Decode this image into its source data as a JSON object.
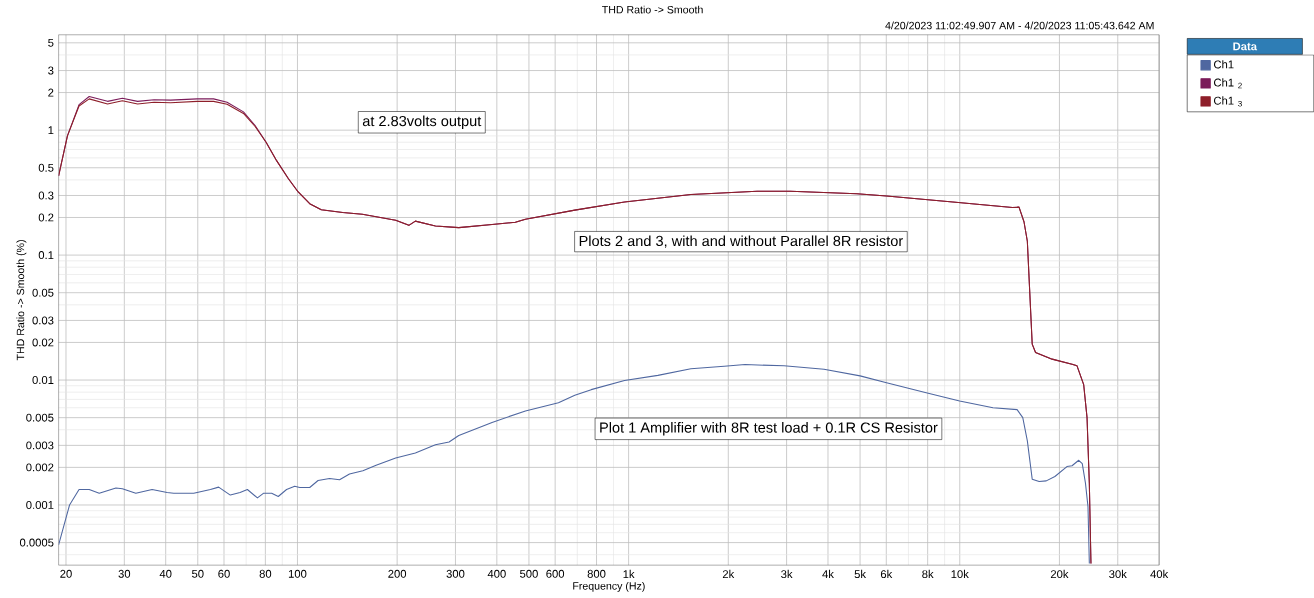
{
  "chart_data": {
    "type": "line",
    "title": "THD Ratio -> Smooth",
    "subtitle": "4/20/2023 11:02:49.907 AM - 4/20/2023 11:05:43.642 AM",
    "xlabel": "Frequency (Hz)",
    "ylabel": "THD Ratio -> Smooth (%)",
    "legend_title": "Data",
    "annotations": [
      "at 2.83volts output",
      "Plots 2 and 3, with and without Parallel 8R resistor",
      "Plot 1 Amplifier with 8R test load + 0.1R CS Resistor"
    ],
    "log": "xy",
    "grid": true,
    "legend": "top right",
    "marker": "none",
    "line_style": "solid",
    "xlim": [
      19,
      40000
    ],
    "ylim": [
      0.00033,
      5.8
    ],
    "xticks": [
      20,
      30,
      40,
      50,
      60,
      80,
      100,
      200,
      300,
      400,
      500,
      600,
      800,
      {
        "value": 1000,
        "label": "1k"
      },
      {
        "value": 2000,
        "label": "2k"
      },
      {
        "value": 3000,
        "label": "3k"
      },
      {
        "value": 4000,
        "label": "4k"
      },
      {
        "value": 5000,
        "label": "5k"
      },
      {
        "value": 6000,
        "label": "6k"
      },
      {
        "value": 8000,
        "label": "8k"
      },
      {
        "value": 10000,
        "label": "10k"
      },
      {
        "value": 20000,
        "label": "20k"
      },
      {
        "value": 30000,
        "label": "30k"
      },
      {
        "value": 40000,
        "label": "40k"
      }
    ],
    "yticks": [
      0.0005,
      0.001,
      0.002,
      0.003,
      0.005,
      0.01,
      0.02,
      0.03,
      0.05,
      0.1,
      0.2,
      0.3,
      0.5,
      1,
      2,
      3,
      5
    ],
    "series": [
      {
        "name": "Ch1",
        "color": "#4f67a0",
        "x": [
          19,
          20.5,
          21.9,
          23.5,
          25.2,
          28.3,
          29.6,
          32.5,
          36.4,
          40.4,
          42.3,
          48.6,
          54.6,
          57.8,
          62.7,
          67.1,
          70.6,
          75.7,
          78.9,
          83.6,
          87.5,
          92.7,
          98.1,
          101.6,
          108.9,
          115.4,
          125,
          134,
          143.6,
          157.6,
          172.8,
          198,
          227,
          261,
          287,
          307,
          387,
          488,
          614,
          688,
          771,
          972,
          1226,
          1542,
          1944,
          2247,
          2946,
          3891,
          5000,
          6010,
          7920,
          9990,
          12600,
          14900,
          15500,
          16000,
          16550,
          17370,
          18250,
          19380,
          21070,
          21830,
          22870,
          23440,
          23970,
          24390,
          24620
        ],
        "values": [
          0.00048,
          0.001,
          0.00133,
          0.00133,
          0.00124,
          0.00137,
          0.00135,
          0.00124,
          0.00133,
          0.00126,
          0.00124,
          0.00124,
          0.00133,
          0.00139,
          0.0012,
          0.00126,
          0.00133,
          0.00114,
          0.00124,
          0.00124,
          0.00117,
          0.00133,
          0.00141,
          0.00138,
          0.00138,
          0.00157,
          0.00163,
          0.00159,
          0.00177,
          0.00188,
          0.00208,
          0.00238,
          0.00261,
          0.00304,
          0.00319,
          0.0036,
          0.00458,
          0.00566,
          0.00659,
          0.00757,
          0.00838,
          0.0099,
          0.0109,
          0.0123,
          0.0129,
          0.0133,
          0.013,
          0.0122,
          0.0108,
          0.0095,
          0.0079,
          0.0068,
          0.006,
          0.0058,
          0.005,
          0.00326,
          0.00161,
          0.00154,
          0.00156,
          0.00169,
          0.00203,
          0.00206,
          0.00228,
          0.00214,
          0.00149,
          0.00097,
          0.00034
        ]
      },
      {
        "name": "Ch1 $_{2}$",
        "color": "#7b1b5a",
        "x": [
          19,
          20.2,
          21.9,
          23.5,
          26.7,
          29.6,
          32.9,
          36.9,
          41.4,
          49.8,
          55.8,
          61.3,
          68.7,
          74.5,
          80.4,
          86.5,
          93.8,
          100.5,
          108.9,
          118,
          137,
          157,
          198,
          217,
          227,
          261,
          307,
          387,
          455,
          488,
          688,
          972,
          1542,
          2444,
          3080,
          4890,
          6010,
          9530,
          14430,
          15100,
          15630,
          16000,
          16550,
          16940,
          19010,
          21830,
          22600,
          23670,
          24230,
          24620,
          24900
        ],
        "values": [
          0.43,
          0.9,
          1.6,
          1.86,
          1.7,
          1.8,
          1.7,
          1.75,
          1.74,
          1.78,
          1.78,
          1.67,
          1.4,
          1.09,
          0.8,
          0.57,
          0.41,
          0.32,
          0.258,
          0.231,
          0.219,
          0.212,
          0.19,
          0.173,
          0.187,
          0.171,
          0.166,
          0.176,
          0.183,
          0.194,
          0.229,
          0.266,
          0.306,
          0.324,
          0.324,
          0.31,
          0.297,
          0.266,
          0.24,
          0.242,
          0.185,
          0.129,
          0.0194,
          0.0166,
          0.0147,
          0.0134,
          0.013,
          0.0092,
          0.005,
          0.00149,
          0.00034
        ]
      },
      {
        "name": "Ch1 $_{3}$",
        "color": "#8e1f2a",
        "x": [
          19,
          20.2,
          21.9,
          23.5,
          26.7,
          29.6,
          32.9,
          36.9,
          41.4,
          49.8,
          55.8,
          61.3,
          68.7,
          74.5,
          80.4,
          86.5,
          93.8,
          100.5,
          108.9,
          118,
          137,
          157,
          198,
          217,
          227,
          261,
          307,
          387,
          455,
          488,
          688,
          972,
          1542,
          2444,
          3080,
          4890,
          6010,
          9530,
          14430,
          15100,
          15630,
          16000,
          16550,
          16940,
          19010,
          21830,
          22600,
          23670,
          24230,
          24620,
          24900
        ],
        "values": [
          0.43,
          0.9,
          1.56,
          1.78,
          1.62,
          1.72,
          1.62,
          1.67,
          1.66,
          1.7,
          1.7,
          1.61,
          1.36,
          1.07,
          0.8,
          0.57,
          0.41,
          0.32,
          0.258,
          0.231,
          0.219,
          0.212,
          0.19,
          0.173,
          0.187,
          0.171,
          0.166,
          0.176,
          0.183,
          0.194,
          0.229,
          0.266,
          0.306,
          0.324,
          0.324,
          0.31,
          0.297,
          0.266,
          0.24,
          0.242,
          0.185,
          0.129,
          0.0194,
          0.0166,
          0.0147,
          0.0134,
          0.013,
          0.0092,
          0.005,
          0.00149,
          0.00034
        ]
      }
    ]
  }
}
